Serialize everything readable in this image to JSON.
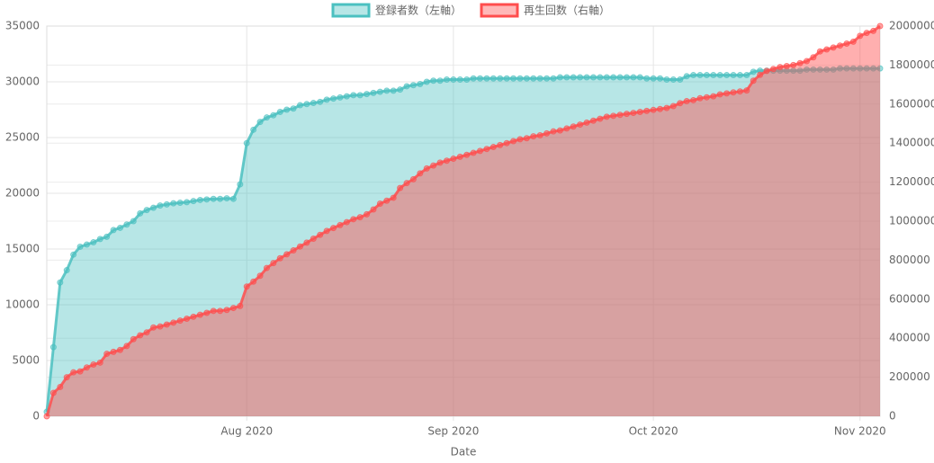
{
  "chart_data": {
    "type": "line",
    "x_label": "Date",
    "categories": [
      null,
      null,
      null,
      null,
      null,
      null,
      null,
      null,
      null,
      null,
      null,
      null,
      null,
      null,
      null,
      null,
      null,
      null,
      null,
      null,
      null,
      null,
      null,
      null,
      null,
      null,
      null,
      null,
      null,
      null,
      "Aug 2020",
      null,
      null,
      null,
      null,
      null,
      null,
      null,
      null,
      null,
      null,
      null,
      null,
      null,
      null,
      null,
      null,
      null,
      null,
      null,
      null,
      null,
      null,
      null,
      null,
      null,
      null,
      null,
      null,
      null,
      null,
      "Sep 2020",
      null,
      null,
      null,
      null,
      null,
      null,
      null,
      null,
      null,
      null,
      null,
      null,
      null,
      null,
      null,
      null,
      null,
      null,
      null,
      null,
      null,
      null,
      null,
      null,
      null,
      null,
      null,
      null,
      null,
      "Oct 2020",
      null,
      null,
      null,
      null,
      null,
      null,
      null,
      null,
      null,
      null,
      null,
      null,
      null,
      null,
      null,
      null,
      null,
      null,
      null,
      null,
      null,
      null,
      null,
      null,
      null,
      null,
      null,
      null,
      null,
      null,
      "Nov 2020",
      null,
      null,
      null
    ],
    "series": [
      {
        "name": "登録者数（左軸）",
        "color": "#4bc0c0",
        "axis": "y",
        "values": [
          400,
          6200,
          12000,
          13100,
          14500,
          15200,
          15400,
          15600,
          15900,
          16100,
          16700,
          16900,
          17200,
          17500,
          18200,
          18500,
          18700,
          18900,
          19000,
          19100,
          19150,
          19200,
          19300,
          19400,
          19450,
          19500,
          19500,
          19550,
          19500,
          20800,
          24500,
          25700,
          26400,
          26800,
          27000,
          27300,
          27500,
          27600,
          27900,
          28000,
          28100,
          28200,
          28400,
          28500,
          28600,
          28700,
          28800,
          28800,
          28900,
          29000,
          29100,
          29200,
          29200,
          29300,
          29600,
          29700,
          29800,
          30000,
          30100,
          30100,
          30200,
          30200,
          30200,
          30200,
          30300,
          30300,
          30300,
          30300,
          30300,
          30300,
          30300,
          30300,
          30300,
          30300,
          30300,
          30300,
          30300,
          30400,
          30400,
          30400,
          30400,
          30400,
          30400,
          30400,
          30400,
          30400,
          30400,
          30400,
          30400,
          30400,
          30300,
          30300,
          30300,
          30200,
          30200,
          30200,
          30500,
          30600,
          30600,
          30600,
          30600,
          30600,
          30600,
          30600,
          30600,
          30600,
          30900,
          31000,
          31000,
          31000,
          31000,
          31000,
          31000,
          31000,
          31100,
          31100,
          31100,
          31100,
          31100,
          31200,
          31200,
          31200,
          31200,
          31200,
          31200,
          31200
        ]
      },
      {
        "name": "再生回数（右軸）",
        "color": "#ff4d4d",
        "axis": "y2",
        "values": [
          0,
          120000,
          150000,
          200000,
          225000,
          230000,
          250000,
          265000,
          275000,
          320000,
          330000,
          340000,
          360000,
          395000,
          415000,
          430000,
          455000,
          460000,
          470000,
          480000,
          490000,
          500000,
          510000,
          520000,
          530000,
          540000,
          540000,
          545000,
          555000,
          565000,
          665000,
          690000,
          720000,
          760000,
          785000,
          810000,
          830000,
          850000,
          870000,
          890000,
          910000,
          930000,
          950000,
          965000,
          980000,
          995000,
          1010000,
          1020000,
          1035000,
          1060000,
          1090000,
          1105000,
          1120000,
          1170000,
          1195000,
          1215000,
          1245000,
          1270000,
          1285000,
          1300000,
          1310000,
          1320000,
          1330000,
          1340000,
          1350000,
          1360000,
          1370000,
          1380000,
          1390000,
          1400000,
          1410000,
          1420000,
          1425000,
          1435000,
          1440000,
          1450000,
          1460000,
          1465000,
          1475000,
          1485000,
          1495000,
          1505000,
          1515000,
          1525000,
          1535000,
          1540000,
          1545000,
          1550000,
          1555000,
          1560000,
          1565000,
          1570000,
          1575000,
          1580000,
          1590000,
          1605000,
          1615000,
          1620000,
          1630000,
          1635000,
          1640000,
          1650000,
          1655000,
          1660000,
          1665000,
          1670000,
          1720000,
          1750000,
          1770000,
          1780000,
          1790000,
          1795000,
          1800000,
          1810000,
          1820000,
          1840000,
          1870000,
          1880000,
          1890000,
          1900000,
          1910000,
          1920000,
          1950000,
          1965000,
          1975000,
          2000000
        ]
      }
    ],
    "ylim": [
      0,
      35000
    ],
    "yticks": [
      0,
      5000,
      10000,
      15000,
      20000,
      25000,
      30000,
      35000
    ],
    "y2lim": [
      0,
      2000000
    ],
    "y2ticks": [
      0,
      200000,
      400000,
      600000,
      800000,
      1000000,
      1200000,
      1400000,
      1600000,
      1800000,
      2000000
    ],
    "grid": true,
    "legend": "top"
  }
}
